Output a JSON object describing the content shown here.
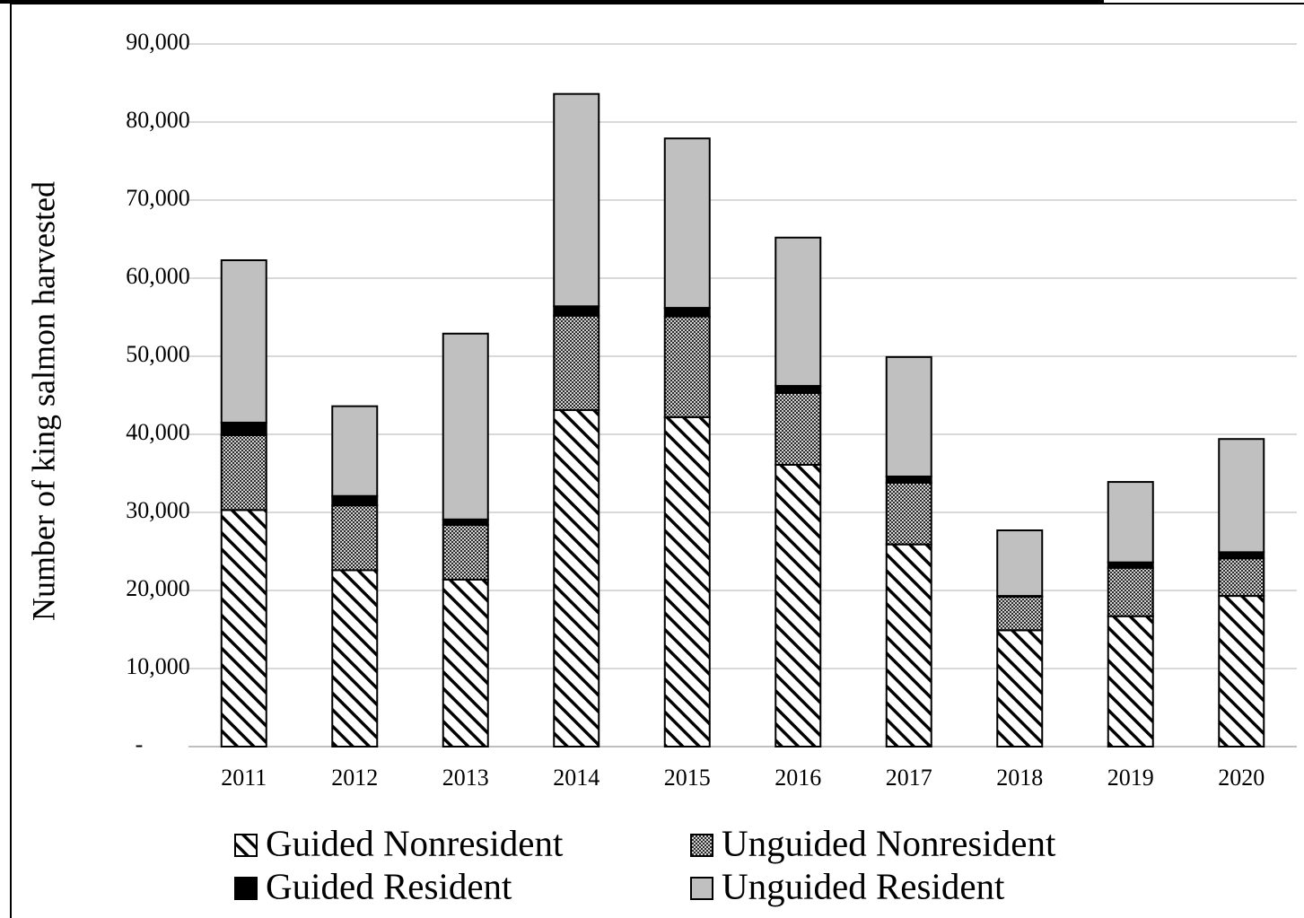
{
  "chart_data": {
    "type": "stacked-bar",
    "ylabel": "Number of king salmon harvested",
    "categories": [
      "2011",
      "2012",
      "2013",
      "2014",
      "2015",
      "2016",
      "2017",
      "2018",
      "2019",
      "2020"
    ],
    "series": [
      {
        "name": "Guided Nonresident",
        "color": "#000000",
        "pattern": "diagonal-hatch",
        "values": [
          30300,
          22600,
          21400,
          43100,
          42200,
          36100,
          25900,
          14900,
          16700,
          19300
        ]
      },
      {
        "name": "Unguided Nonresident",
        "color": "#000000",
        "pattern": "fine-crosshatch",
        "values": [
          9600,
          8300,
          7000,
          12100,
          12900,
          9200,
          7900,
          4300,
          6200,
          4800
        ]
      },
      {
        "name": "Guided Resident",
        "color": "#000000",
        "pattern": "solid",
        "values": [
          1600,
          1200,
          700,
          1200,
          1100,
          900,
          800,
          100,
          700,
          800
        ]
      },
      {
        "name": "Unguided Resident",
        "color": "#c0c0c0",
        "pattern": "solid",
        "values": [
          20800,
          11500,
          23800,
          27200,
          21700,
          19000,
          15300,
          8400,
          10300,
          14500
        ]
      }
    ],
    "ylim": [
      0,
      90000
    ],
    "yticks": [
      {
        "value": 0,
        "label": "-"
      },
      {
        "value": 10000,
        "label": "10,000"
      },
      {
        "value": 20000,
        "label": "20,000"
      },
      {
        "value": 30000,
        "label": "30,000"
      },
      {
        "value": 40000,
        "label": "40,000"
      },
      {
        "value": 50000,
        "label": "50,000"
      },
      {
        "value": 60000,
        "label": "60,000"
      },
      {
        "value": 70000,
        "label": "70,000"
      },
      {
        "value": 80000,
        "label": "80,000"
      },
      {
        "value": 90000,
        "label": "90,000"
      }
    ],
    "grid": true
  }
}
